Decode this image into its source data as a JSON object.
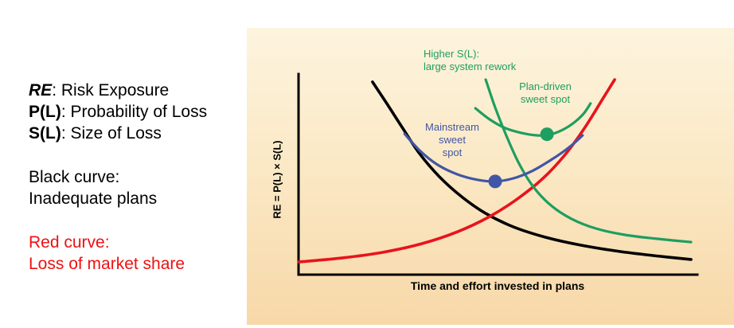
{
  "legend": {
    "items": [
      {
        "term": "RE",
        "rest": ": Risk Exposure"
      },
      {
        "term": "P(L)",
        "rest": ": Probability of Loss"
      },
      {
        "term": "S(L)",
        "rest": ": Size of Loss"
      }
    ],
    "black_curve": {
      "line1": "Black curve:",
      "line2": "Inadequate plans"
    },
    "red_curve": {
      "line1": "Red curve:",
      "line2": "Loss of market share"
    },
    "red_text_color": "#EE1111"
  },
  "chart_data": {
    "type": "line",
    "title": "",
    "xlabel": "Time and effort invested in plans",
    "ylabel": "RE = P(L) × S(L)",
    "x_range": [
      0,
      100
    ],
    "y_range": [
      0,
      100
    ],
    "grid": false,
    "legend_position": "none",
    "background_gradient": [
      "#FDF4DE",
      "#F7D8A8"
    ],
    "series": [
      {
        "name": "inadequate-plans",
        "color": "#000000",
        "width": 3.6,
        "points": [
          [
            18.7,
            98.8
          ],
          [
            22.3,
            87.8
          ],
          [
            26.2,
            75.5
          ],
          [
            30.6,
            62.0
          ],
          [
            35.6,
            50.2
          ],
          [
            41.2,
            40.0
          ],
          [
            47.3,
            31.4
          ],
          [
            54.3,
            24.5
          ],
          [
            62.4,
            19.2
          ],
          [
            71.4,
            15.1
          ],
          [
            81.5,
            11.8
          ],
          [
            91.5,
            9.4
          ],
          [
            99.2,
            7.8
          ]
        ]
      },
      {
        "name": "loss-of-market-share",
        "color": "#E8131D",
        "width": 3.6,
        "points": [
          [
            0,
            6.5
          ],
          [
            11.1,
            8.6
          ],
          [
            21.1,
            11.4
          ],
          [
            31.2,
            15.9
          ],
          [
            40.2,
            22.0
          ],
          [
            48.3,
            29.8
          ],
          [
            55.3,
            38.8
          ],
          [
            61.8,
            49.4
          ],
          [
            67.4,
            61.6
          ],
          [
            72.4,
            75.5
          ],
          [
            76.9,
            90.2
          ],
          [
            79.9,
            100
          ]
        ]
      },
      {
        "name": "higher-sl-large-system-rework",
        "color": "#1E9E60",
        "width": 3.2,
        "points": [
          [
            47.3,
            100
          ],
          [
            49.7,
            85.7
          ],
          [
            52.5,
            71.4
          ],
          [
            55.7,
            57.1
          ],
          [
            59.4,
            44.9
          ],
          [
            63.8,
            35.5
          ],
          [
            69.0,
            28.6
          ],
          [
            75.1,
            23.7
          ],
          [
            82.5,
            20.4
          ],
          [
            90.5,
            18.4
          ],
          [
            99.2,
            16.7
          ]
        ]
      },
      {
        "name": "mainstream-total-risk",
        "color": "#4156A6",
        "width": 3.2,
        "points": [
          [
            26.8,
            72.2
          ],
          [
            30.8,
            63.3
          ],
          [
            35.2,
            56.3
          ],
          [
            40.2,
            51.4
          ],
          [
            45.3,
            48.6
          ],
          [
            49.7,
            47.8
          ],
          [
            54.3,
            49.4
          ],
          [
            59.0,
            53.1
          ],
          [
            63.8,
            58.8
          ],
          [
            68.4,
            65.3
          ],
          [
            71.8,
            71.4
          ]
        ],
        "marker": {
          "x": 49.7,
          "y": 47.8,
          "label": "Mainstream sweet spot"
        }
      },
      {
        "name": "plan-driven-total-risk",
        "color": "#1E9E60",
        "width": 3.2,
        "points": [
          [
            44.7,
            85.3
          ],
          [
            48.3,
            79.6
          ],
          [
            52.3,
            75.1
          ],
          [
            56.3,
            72.7
          ],
          [
            60.4,
            71.4
          ],
          [
            63.4,
            71.8
          ],
          [
            66.4,
            73.9
          ],
          [
            69.4,
            77.6
          ],
          [
            72.0,
            82.4
          ],
          [
            73.8,
            87.8
          ]
        ],
        "marker": {
          "x": 62.8,
          "y": 72.0,
          "label": "Plan-driven sweet spot"
        }
      }
    ],
    "annotations": {
      "higher_sl": {
        "line1": "Higher S(L):",
        "line2": "large system rework",
        "color": "#1E9E60"
      },
      "plan_driven": {
        "line1": "Plan-driven",
        "line2": "sweet spot",
        "color": "#1E9E60"
      },
      "mainstream": {
        "line1": "Mainstream",
        "line2": "sweet",
        "line3": "spot",
        "color": "#4156A6"
      }
    }
  }
}
